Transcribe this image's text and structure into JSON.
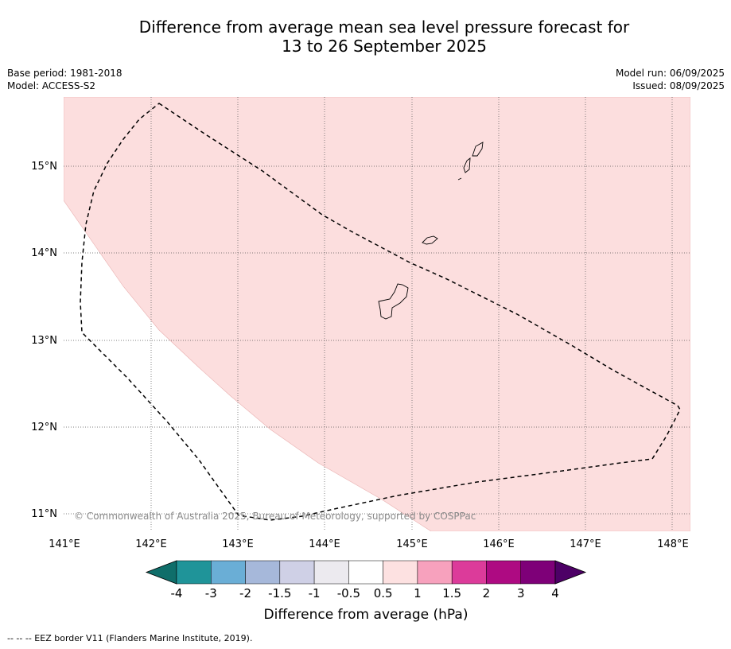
{
  "title_line1": "Difference from average mean sea level pressure forecast for",
  "title_line2": "13 to 26 September 2025",
  "base_period": "Base period: 1981-2018",
  "model": "Model: ACCESS-S2",
  "model_run": "Model run: 06/09/2025",
  "issued": "Issued: 08/09/2025",
  "lon_ticks": [
    "141°E",
    "142°E",
    "143°E",
    "144°E",
    "145°E",
    "146°E",
    "147°E",
    "148°E"
  ],
  "lat_ticks": [
    "15°N",
    "14°N",
    "13°N",
    "12°N",
    "11°N"
  ],
  "copyright": "© Commonwealth of Australia 2025, Bureau of Meteorology, supported by COSPPac",
  "colorbar": {
    "labels": [
      "-4",
      "-3",
      "-2",
      "-1.5",
      "-1",
      "-0.5",
      "0.5",
      "1",
      "1.5",
      "2",
      "3",
      "4"
    ],
    "colors": [
      "#0f6e6a",
      "#1f9499",
      "#6aaed6",
      "#a6b8da",
      "#cfd0e6",
      "#eceaef",
      "#ffffff",
      "#fde1e1",
      "#f7a1bd",
      "#dc3b9a",
      "#ae0a82",
      "#7e0078",
      "#4d0066"
    ],
    "title": "Difference from average (hPa)"
  },
  "legend_note": "--  --  -- EEZ border V11 (Flanders Marine Institute, 2019)."
}
